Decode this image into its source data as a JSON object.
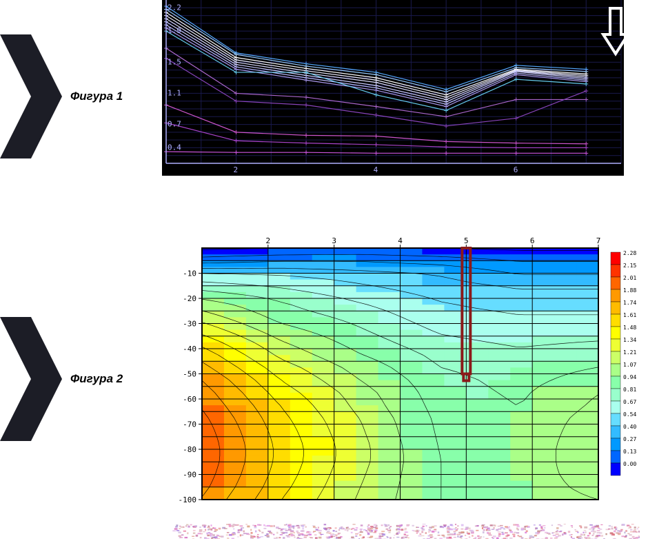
{
  "figure1": {
    "label": "Фигура 1",
    "chevron_color": "#1c1d26",
    "background_color": "#000000",
    "grid_color": "#1a1a4d",
    "axis_color": "#b0b0ff",
    "axis_fontsize": 11,
    "xlim": [
      1,
      7.5
    ],
    "ylim": [
      0.2,
      2.3
    ],
    "x_ticks": [
      2,
      4,
      6
    ],
    "y_ticks": [
      0.4,
      0.7,
      1.1,
      1.5,
      1.9,
      2.2
    ],
    "y_tick_labels": [
      "0.4",
      "0.7",
      "1.1",
      "1.5",
      "1.9",
      "2.2"
    ],
    "arrow_color": "#ffffff",
    "arrow_stroke": 4,
    "series": [
      {
        "color": "#55aaff",
        "values": [
          2.22,
          1.62,
          1.48,
          1.37,
          1.15,
          1.46,
          1.41
        ]
      },
      {
        "color": "#99ccff",
        "values": [
          2.18,
          1.6,
          1.45,
          1.34,
          1.12,
          1.43,
          1.38
        ]
      },
      {
        "color": "#ffffff",
        "values": [
          2.14,
          1.56,
          1.42,
          1.3,
          1.08,
          1.41,
          1.35
        ]
      },
      {
        "color": "#eeeeff",
        "values": [
          2.1,
          1.53,
          1.39,
          1.27,
          1.05,
          1.4,
          1.33
        ]
      },
      {
        "color": "#ddddff",
        "values": [
          2.06,
          1.5,
          1.36,
          1.24,
          1.02,
          1.39,
          1.31
        ]
      },
      {
        "color": "#ccccff",
        "values": [
          2.02,
          1.47,
          1.33,
          1.2,
          0.99,
          1.38,
          1.29
        ]
      },
      {
        "color": "#bbbbff",
        "values": [
          1.98,
          1.44,
          1.3,
          1.17,
          0.96,
          1.36,
          1.27
        ]
      },
      {
        "color": "#aa99ee",
        "values": [
          1.94,
          1.41,
          1.27,
          1.14,
          0.93,
          1.34,
          1.25
        ]
      },
      {
        "color": "#66ccee",
        "values": [
          1.9,
          1.37,
          1.37,
          1.08,
          0.88,
          1.28,
          1.22
        ]
      },
      {
        "color": "#aa66cc",
        "values": [
          1.68,
          1.1,
          1.05,
          0.93,
          0.8,
          1.02,
          1.02
        ]
      },
      {
        "color": "#8844bb",
        "values": [
          1.55,
          1.0,
          0.95,
          0.82,
          0.68,
          0.78,
          1.13
        ]
      },
      {
        "color": "#cc55cc",
        "values": [
          0.95,
          0.6,
          0.56,
          0.55,
          0.48,
          0.46,
          0.45
        ]
      },
      {
        "color": "#aa44cc",
        "values": [
          0.72,
          0.49,
          0.46,
          0.44,
          0.41,
          0.4,
          0.4
        ]
      },
      {
        "color": "#cc55dd",
        "values": [
          0.35,
          0.34,
          0.34,
          0.33,
          0.33,
          0.33,
          0.33
        ]
      }
    ],
    "x_positions": [
      1,
      2,
      3,
      4,
      5,
      6,
      7
    ]
  },
  "figure2": {
    "label": "Фигура 2",
    "chevron_color": "#1c1d26",
    "background_color": "#ffffff",
    "grid_color": "#000000",
    "axis_color": "#000000",
    "axis_font": "monospace",
    "axis_fontsize": 11,
    "xlim": [
      1,
      7
    ],
    "ylim": [
      -100,
      0
    ],
    "x_ticks": [
      2,
      3,
      4,
      5,
      6,
      7
    ],
    "y_ticks": [
      -10,
      -20,
      -30,
      -40,
      -50,
      -60,
      -70,
      -80,
      -90,
      -100
    ],
    "legend": {
      "values": [
        2.28,
        2.15,
        2.01,
        1.88,
        1.74,
        1.61,
        1.48,
        1.34,
        1.21,
        1.07,
        0.94,
        0.81,
        0.67,
        0.54,
        0.4,
        0.27,
        0.13,
        0.0
      ],
      "colors": [
        "#ff0000",
        "#ff3300",
        "#ff6600",
        "#ff9900",
        "#ffbb00",
        "#ffdd00",
        "#ffff00",
        "#eeff33",
        "#ccff66",
        "#aaff88",
        "#88ffaa",
        "#99ffcc",
        "#aaffee",
        "#66ddff",
        "#33bbff",
        "#0099ff",
        "#0066ff",
        "#0000ff"
      ],
      "fontsize": 8
    },
    "grid_rows": 20,
    "grid_cols": 6,
    "cell_values": [
      [
        0.1,
        0.13,
        0.15,
        0.13,
        0.1,
        0.1
      ],
      [
        0.35,
        0.4,
        0.4,
        0.35,
        0.27,
        0.27
      ],
      [
        0.7,
        0.67,
        0.6,
        0.54,
        0.4,
        0.4
      ],
      [
        0.9,
        0.81,
        0.7,
        0.6,
        0.54,
        0.54
      ],
      [
        1.1,
        0.94,
        0.8,
        0.67,
        0.6,
        0.6
      ],
      [
        1.25,
        1.0,
        0.88,
        0.72,
        0.67,
        0.67
      ],
      [
        1.4,
        1.1,
        0.94,
        0.78,
        0.72,
        0.72
      ],
      [
        1.55,
        1.21,
        1.0,
        0.84,
        0.78,
        0.81
      ],
      [
        1.68,
        1.3,
        1.07,
        0.9,
        0.84,
        0.88
      ],
      [
        1.78,
        1.4,
        1.15,
        0.94,
        0.88,
        0.94
      ],
      [
        1.88,
        1.48,
        1.21,
        0.98,
        0.9,
        1.0
      ],
      [
        1.95,
        1.55,
        1.27,
        1.0,
        0.92,
        1.07
      ],
      [
        2.0,
        1.61,
        1.3,
        1.02,
        0.94,
        1.1
      ],
      [
        2.05,
        1.65,
        1.34,
        1.04,
        0.96,
        1.14
      ],
      [
        2.08,
        1.68,
        1.36,
        1.05,
        0.98,
        1.15
      ],
      [
        2.1,
        1.7,
        1.38,
        1.06,
        1.0,
        1.15
      ],
      [
        2.1,
        1.7,
        1.38,
        1.07,
        1.01,
        1.14
      ],
      [
        2.08,
        1.68,
        1.36,
        1.07,
        1.02,
        1.12
      ],
      [
        2.05,
        1.65,
        1.34,
        1.07,
        1.02,
        1.1
      ],
      [
        2.0,
        1.61,
        1.32,
        1.07,
        1.02,
        1.07
      ]
    ],
    "drill_marker_color": "#8b1a1a",
    "drill_marker_stroke": 4
  },
  "noise_bar": {
    "color1": "#e8d8f0",
    "color2": "#c0d8e8"
  }
}
